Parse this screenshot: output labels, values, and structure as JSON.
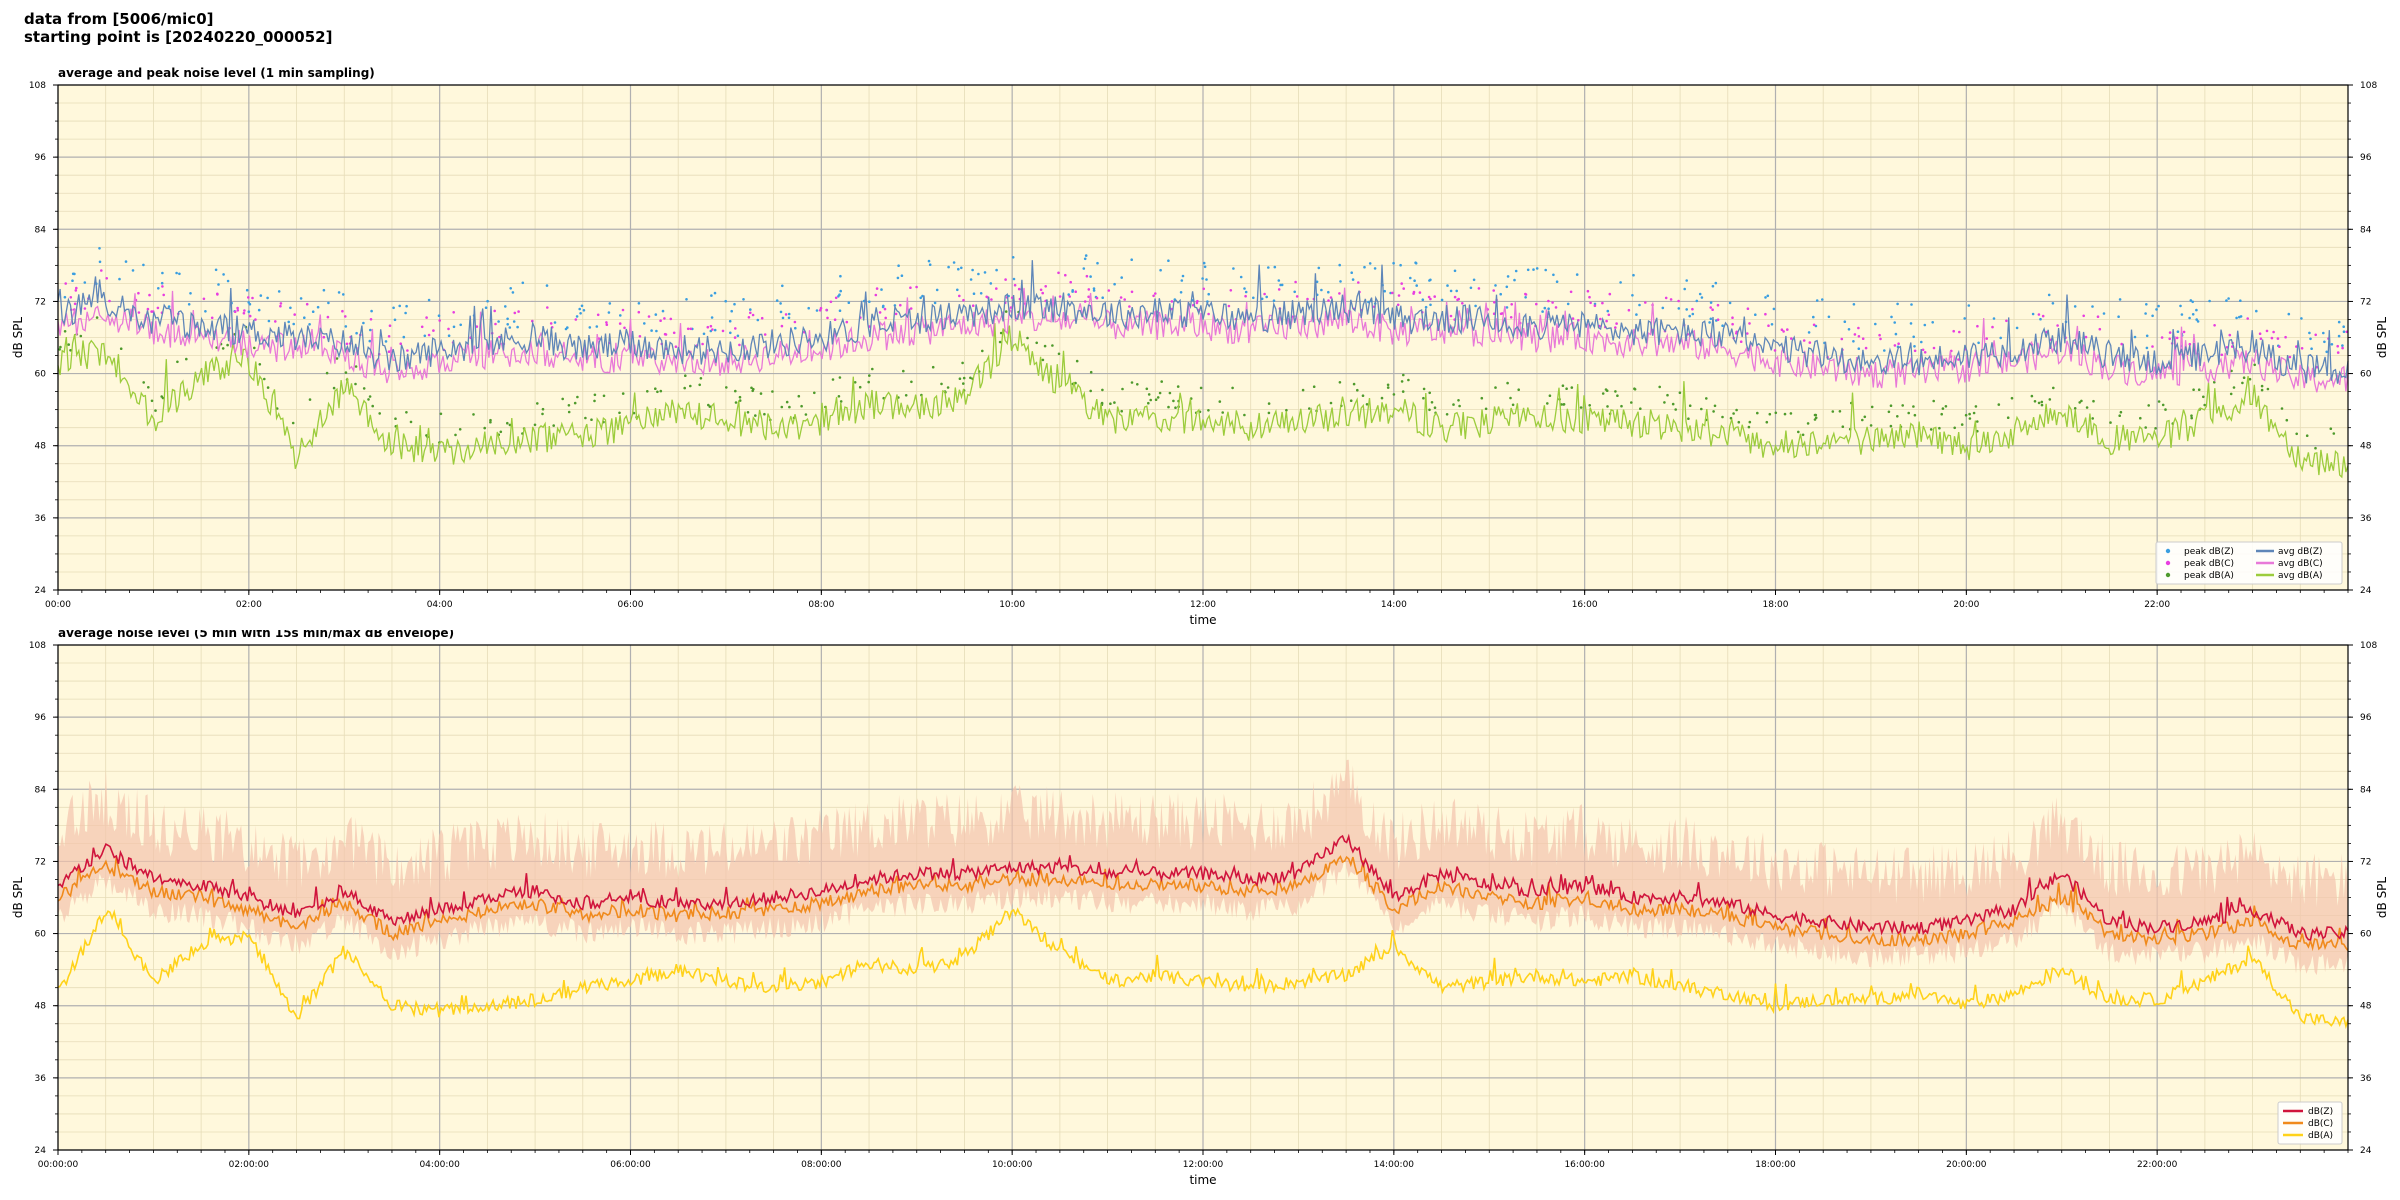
{
  "header": {
    "line1": "data from [5006/mic0]",
    "line2": "starting point is [20240220_000052]"
  },
  "chart_data": [
    {
      "type": "line",
      "title": "average and peak noise level (1 min sampling)",
      "xlabel": "time",
      "ylabel": "dB SPL",
      "ylim": [
        24,
        108
      ],
      "xlim_hours": [
        0,
        24
      ],
      "yticks": [
        24,
        36,
        48,
        60,
        72,
        84,
        96,
        108
      ],
      "xtick_labels": [
        "00:00",
        "02:00",
        "04:00",
        "06:00",
        "08:00",
        "10:00",
        "12:00",
        "14:00",
        "16:00",
        "18:00",
        "20:00",
        "22:00"
      ],
      "grid": true,
      "legend_position": "lower-right",
      "legend_columns": 2,
      "series": [
        {
          "name": "peak dB(Z)",
          "kind": "scatter",
          "color": "#3a9ee0",
          "base": "avg dB(Z)",
          "offset_db": 6
        },
        {
          "name": "peak dB(C)",
          "kind": "scatter",
          "color": "#e83ee0",
          "base": "avg dB(C)",
          "offset_db": 5
        },
        {
          "name": "peak dB(A)",
          "kind": "scatter",
          "color": "#4e9a2c",
          "base": "avg dB(A)",
          "offset_db": 4
        },
        {
          "name": "avg dB(Z)",
          "kind": "line",
          "color": "#5f86b8",
          "x_hours": [
            0,
            0.5,
            1,
            1.5,
            2,
            2.5,
            3,
            3.5,
            4,
            4.5,
            5,
            5.5,
            6,
            6.5,
            7,
            7.5,
            8,
            8.5,
            9,
            9.5,
            10,
            10.5,
            11,
            11.5,
            12,
            12.5,
            13,
            13.5,
            14,
            14.5,
            15,
            15.5,
            16,
            16.5,
            17,
            17.5,
            18,
            18.5,
            19,
            19.5,
            20,
            20.5,
            21,
            21.5,
            22,
            22.5,
            23,
            23.5,
            24
          ],
          "values": [
            70,
            72,
            69,
            68,
            67,
            66,
            65,
            62,
            64,
            65,
            66,
            64,
            65,
            64,
            64,
            65,
            66,
            68,
            69,
            70,
            71,
            71,
            70,
            70,
            70,
            69,
            70,
            71,
            69,
            69,
            69,
            68,
            68,
            67,
            67,
            66,
            64,
            63,
            62,
            62,
            63,
            64,
            66,
            63,
            62,
            63,
            64,
            61,
            60
          ]
        },
        {
          "name": "avg dB(C)",
          "kind": "line",
          "color": "#e879d8",
          "x_hours": [
            0,
            0.5,
            1,
            1.5,
            2,
            2.5,
            3,
            3.5,
            4,
            4.5,
            5,
            5.5,
            6,
            6.5,
            7,
            7.5,
            8,
            8.5,
            9,
            9.5,
            10,
            10.5,
            11,
            11.5,
            12,
            12.5,
            13,
            13.5,
            14,
            14.5,
            15,
            15.5,
            16,
            16.5,
            17,
            17.5,
            18,
            18.5,
            19,
            19.5,
            20,
            20.5,
            21,
            21.5,
            22,
            22.5,
            23,
            23.5,
            24
          ],
          "values": [
            68,
            70,
            67,
            66,
            65,
            64,
            63,
            60,
            62,
            63,
            64,
            62,
            63,
            62,
            62,
            63,
            64,
            66,
            67,
            68,
            69,
            69,
            68,
            68,
            68,
            67,
            68,
            69,
            67,
            67,
            67,
            66,
            66,
            65,
            65,
            64,
            62,
            61,
            60,
            60,
            61,
            62,
            64,
            61,
            60,
            61,
            62,
            59,
            59
          ]
        },
        {
          "name": "avg dB(A)",
          "kind": "line",
          "color": "#9ccc3c",
          "x_hours": [
            0,
            0.5,
            1,
            1.5,
            2,
            2.5,
            3,
            3.5,
            4,
            4.5,
            5,
            5.5,
            6,
            6.5,
            7,
            7.5,
            8,
            8.5,
            9,
            9.5,
            10,
            10.5,
            11,
            11.5,
            12,
            12.5,
            13,
            13.5,
            14,
            14.5,
            15,
            15.5,
            16,
            16.5,
            17,
            17.5,
            18,
            18.5,
            19,
            19.5,
            20,
            20.5,
            21,
            21.5,
            22,
            22.5,
            23,
            23.5,
            24
          ],
          "values": [
            62,
            64,
            52,
            60,
            62,
            46,
            58,
            48,
            47,
            48,
            49,
            50,
            51,
            54,
            52,
            51,
            52,
            55,
            54,
            56,
            66,
            58,
            52,
            53,
            52,
            51,
            52,
            53,
            54,
            51,
            52,
            53,
            52,
            52,
            51,
            50,
            48,
            49,
            49,
            50,
            48,
            50,
            54,
            49,
            49,
            52,
            56,
            46,
            45
          ]
        }
      ]
    },
    {
      "type": "line",
      "title": "average noise level (5 min with 15s min/max dB envelope)",
      "xlabel": "time",
      "ylabel": "dB SPL",
      "ylim": [
        24,
        108
      ],
      "xlim_hours": [
        0,
        24
      ],
      "yticks": [
        24,
        36,
        48,
        60,
        72,
        84,
        96,
        108
      ],
      "xtick_labels": [
        "00:00:00",
        "02:00:00",
        "04:00:00",
        "06:00:00",
        "08:00:00",
        "10:00:00",
        "12:00:00",
        "14:00:00",
        "16:00:00",
        "18:00:00",
        "20:00:00",
        "22:00:00"
      ],
      "grid": true,
      "legend_position": "lower-right",
      "envelope": {
        "color": "#f3c3ad",
        "min_offset_db": -5,
        "max_offset_db": 11,
        "base": "dB(Z)"
      },
      "series": [
        {
          "name": "dB(Z)",
          "color": "#d0143c",
          "x_hours": [
            0,
            0.5,
            1,
            1.5,
            2,
            2.5,
            3,
            3.5,
            4,
            4.5,
            5,
            5.5,
            6,
            6.5,
            7,
            7.5,
            8,
            8.5,
            9,
            9.5,
            10,
            10.5,
            11,
            11.5,
            12,
            12.5,
            13,
            13.5,
            14,
            14.5,
            15,
            15.5,
            16,
            16.5,
            17,
            17.5,
            18,
            18.5,
            19,
            19.5,
            20,
            20.5,
            21,
            21.5,
            22,
            22.5,
            23,
            23.5,
            24
          ],
          "values": [
            68,
            74,
            69,
            68,
            66,
            63,
            67,
            62,
            64,
            66,
            67,
            65,
            66,
            65,
            65,
            66,
            67,
            69,
            70,
            70,
            71,
            71,
            70,
            70,
            70,
            69,
            70,
            76,
            66,
            70,
            68,
            67,
            68,
            66,
            66,
            65,
            63,
            62,
            61,
            61,
            62,
            64,
            70,
            62,
            61,
            62,
            64,
            60,
            60
          ]
        },
        {
          "name": "dB(C)",
          "color": "#f08a1c",
          "x_hours": [
            0,
            0.5,
            1,
            1.5,
            2,
            2.5,
            3,
            3.5,
            4,
            4.5,
            5,
            5.5,
            6,
            6.5,
            7,
            7.5,
            8,
            8.5,
            9,
            9.5,
            10,
            10.5,
            11,
            11.5,
            12,
            12.5,
            13,
            13.5,
            14,
            14.5,
            15,
            15.5,
            16,
            16.5,
            17,
            17.5,
            18,
            18.5,
            19,
            19.5,
            20,
            20.5,
            21,
            21.5,
            22,
            22.5,
            23,
            23.5,
            24
          ],
          "values": [
            66,
            71,
            67,
            66,
            64,
            61,
            65,
            60,
            62,
            64,
            65,
            63,
            64,
            63,
            63,
            64,
            65,
            67,
            68,
            68,
            69,
            69,
            68,
            68,
            68,
            67,
            68,
            73,
            64,
            68,
            66,
            65,
            66,
            64,
            64,
            63,
            61,
            60,
            59,
            59,
            60,
            62,
            66,
            60,
            59,
            60,
            62,
            58,
            58
          ]
        },
        {
          "name": "dB(A)",
          "color": "#ffd21a",
          "x_hours": [
            0,
            0.5,
            1,
            1.5,
            2,
            2.5,
            3,
            3.5,
            4,
            4.5,
            5,
            5.5,
            6,
            6.5,
            7,
            7.5,
            8,
            8.5,
            9,
            9.5,
            10,
            10.5,
            11,
            11.5,
            12,
            12.5,
            13,
            13.5,
            14,
            14.5,
            15,
            15.5,
            16,
            16.5,
            17,
            17.5,
            18,
            18.5,
            19,
            19.5,
            20,
            20.5,
            21,
            21.5,
            22,
            22.5,
            23,
            23.5,
            24
          ],
          "values": [
            50,
            64,
            52,
            58,
            60,
            46,
            57,
            48,
            47,
            48,
            49,
            51,
            52,
            54,
            52,
            51,
            52,
            55,
            54,
            56,
            64,
            57,
            52,
            53,
            52,
            51,
            52,
            53,
            58,
            51,
            52,
            53,
            52,
            53,
            51,
            50,
            48,
            49,
            49,
            50,
            48,
            50,
            54,
            49,
            49,
            52,
            56,
            46,
            45
          ]
        }
      ]
    }
  ]
}
